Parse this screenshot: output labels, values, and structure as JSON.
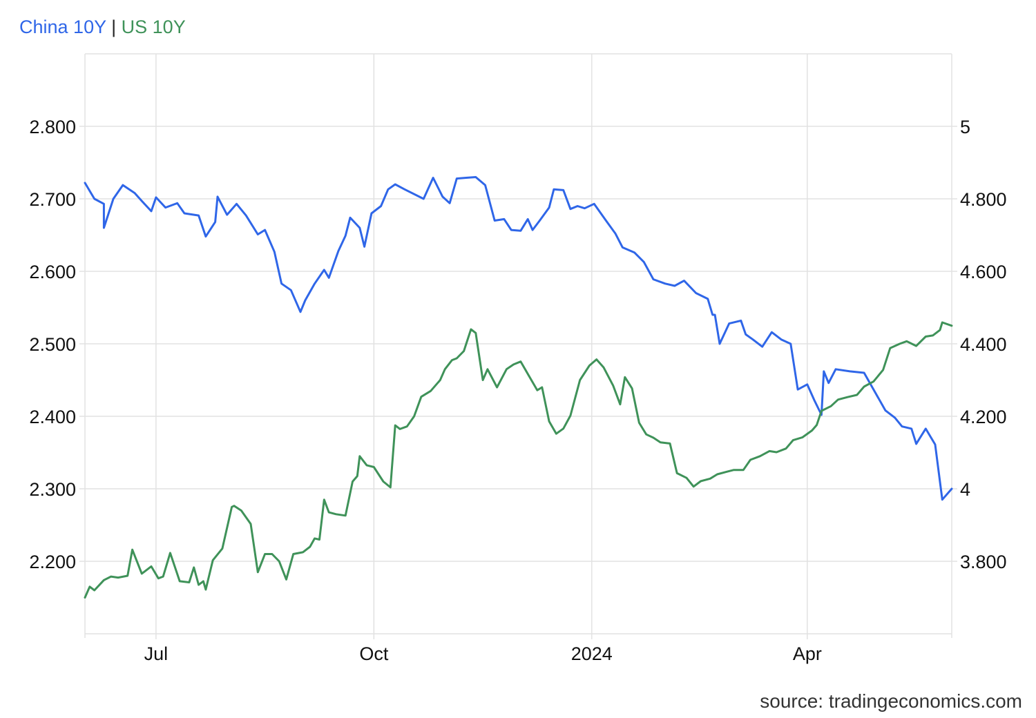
{
  "legend": {
    "series_a": "China 10Y",
    "separator": "|",
    "series_b": "US 10Y"
  },
  "source": "source: tradingeconomics.com",
  "colors": {
    "china": "#2f66e8",
    "us": "#3f9259",
    "grid": "#e2e2e2",
    "axis_text": "#111111"
  },
  "chart_data": {
    "type": "line",
    "x_type": "date",
    "x_range": [
      "2023-06-01",
      "2024-06-01"
    ],
    "x_ticks": [
      {
        "date": "2023-07-01",
        "label": "Jul"
      },
      {
        "date": "2023-10-01",
        "label": "Oct"
      },
      {
        "date": "2024-01-01",
        "label": "2024"
      },
      {
        "date": "2024-04-01",
        "label": "Apr"
      }
    ],
    "y_left": {
      "range": [
        2.1,
        2.9
      ],
      "ticks": [
        2.2,
        2.3,
        2.4,
        2.5,
        2.6,
        2.7,
        2.8
      ],
      "tick_labels": [
        "2.200",
        "2.300",
        "2.400",
        "2.500",
        "2.600",
        "2.700",
        "2.800"
      ]
    },
    "y_right": {
      "range": [
        3.6,
        5.2
      ],
      "ticks": [
        3.8,
        4.0,
        4.2,
        4.4,
        4.6,
        4.8,
        5.0
      ],
      "tick_labels": [
        "3.800",
        "4",
        "4.200",
        "4.400",
        "4.600",
        "4.800",
        "5"
      ]
    },
    "grid": true,
    "series": [
      {
        "name": "China 10Y",
        "axis": "left",
        "color_key": "china",
        "points": [
          [
            "2023-06-01",
            2.722
          ],
          [
            "2023-06-05",
            2.7
          ],
          [
            "2023-06-09",
            2.693
          ],
          [
            "2023-06-09",
            2.66
          ],
          [
            "2023-06-13",
            2.7
          ],
          [
            "2023-06-17",
            2.719
          ],
          [
            "2023-06-22",
            2.708
          ],
          [
            "2023-06-25",
            2.697
          ],
          [
            "2023-06-29",
            2.683
          ],
          [
            "2023-07-01",
            2.702
          ],
          [
            "2023-07-05",
            2.688
          ],
          [
            "2023-07-10",
            2.694
          ],
          [
            "2023-07-13",
            2.68
          ],
          [
            "2023-07-19",
            2.677
          ],
          [
            "2023-07-22",
            2.648
          ],
          [
            "2023-07-26",
            2.668
          ],
          [
            "2023-07-27",
            2.703
          ],
          [
            "2023-07-31",
            2.678
          ],
          [
            "2023-08-04",
            2.693
          ],
          [
            "2023-08-08",
            2.677
          ],
          [
            "2023-08-13",
            2.651
          ],
          [
            "2023-08-16",
            2.657
          ],
          [
            "2023-08-20",
            2.627
          ],
          [
            "2023-08-23",
            2.583
          ],
          [
            "2023-08-27",
            2.574
          ],
          [
            "2023-08-31",
            2.544
          ],
          [
            "2023-09-02",
            2.56
          ],
          [
            "2023-09-06",
            2.583
          ],
          [
            "2023-09-10",
            2.602
          ],
          [
            "2023-09-12",
            2.591
          ],
          [
            "2023-09-16",
            2.628
          ],
          [
            "2023-09-19",
            2.649
          ],
          [
            "2023-09-21",
            2.674
          ],
          [
            "2023-09-25",
            2.66
          ],
          [
            "2023-09-27",
            2.634
          ],
          [
            "2023-09-30",
            2.68
          ],
          [
            "2023-10-04",
            2.69
          ],
          [
            "2023-10-07",
            2.713
          ],
          [
            "2023-10-10",
            2.72
          ],
          [
            "2023-10-14",
            2.713
          ],
          [
            "2023-10-22",
            2.7
          ],
          [
            "2023-10-26",
            2.729
          ],
          [
            "2023-10-30",
            2.703
          ],
          [
            "2023-11-02",
            2.694
          ],
          [
            "2023-11-05",
            2.728
          ],
          [
            "2023-11-09",
            2.729
          ],
          [
            "2023-11-13",
            2.73
          ],
          [
            "2023-11-17",
            2.719
          ],
          [
            "2023-11-21",
            2.67
          ],
          [
            "2023-11-25",
            2.672
          ],
          [
            "2023-11-28",
            2.657
          ],
          [
            "2023-12-02",
            2.656
          ],
          [
            "2023-12-05",
            2.672
          ],
          [
            "2023-12-07",
            2.657
          ],
          [
            "2023-12-10",
            2.67
          ],
          [
            "2023-12-14",
            2.688
          ],
          [
            "2023-12-16",
            2.713
          ],
          [
            "2023-12-20",
            2.712
          ],
          [
            "2023-12-23",
            2.686
          ],
          [
            "2023-12-26",
            2.69
          ],
          [
            "2023-12-29",
            2.687
          ],
          [
            "2024-01-02",
            2.693
          ],
          [
            "2024-01-07",
            2.67
          ],
          [
            "2024-01-11",
            2.652
          ],
          [
            "2024-01-14",
            2.633
          ],
          [
            "2024-01-19",
            2.626
          ],
          [
            "2024-01-23",
            2.613
          ],
          [
            "2024-01-27",
            2.589
          ],
          [
            "2024-02-01",
            2.583
          ],
          [
            "2024-02-05",
            2.58
          ],
          [
            "2024-02-09",
            2.587
          ],
          [
            "2024-02-14",
            2.57
          ],
          [
            "2024-02-19",
            2.562
          ],
          [
            "2024-02-21",
            2.54
          ],
          [
            "2024-02-22",
            2.54
          ],
          [
            "2024-02-24",
            2.5
          ],
          [
            "2024-02-28",
            2.528
          ],
          [
            "2024-03-04",
            2.532
          ],
          [
            "2024-03-06",
            2.513
          ],
          [
            "2024-03-09",
            2.506
          ],
          [
            "2024-03-13",
            2.496
          ],
          [
            "2024-03-17",
            2.516
          ],
          [
            "2024-03-21",
            2.506
          ],
          [
            "2024-03-25",
            2.5
          ],
          [
            "2024-03-28",
            2.437
          ],
          [
            "2024-04-01",
            2.444
          ],
          [
            "2024-04-04",
            2.422
          ],
          [
            "2024-04-07",
            2.402
          ],
          [
            "2024-04-08",
            2.462
          ],
          [
            "2024-04-10",
            2.446
          ],
          [
            "2024-04-13",
            2.465
          ],
          [
            "2024-04-19",
            2.462
          ],
          [
            "2024-04-25",
            2.46
          ],
          [
            "2024-04-29",
            2.437
          ],
          [
            "2024-05-04",
            2.408
          ],
          [
            "2024-05-08",
            2.398
          ],
          [
            "2024-05-11",
            2.386
          ],
          [
            "2024-05-15",
            2.383
          ],
          [
            "2024-05-17",
            2.362
          ],
          [
            "2024-05-21",
            2.383
          ],
          [
            "2024-05-25",
            2.361
          ],
          [
            "2024-05-28",
            2.285
          ],
          [
            "2024-06-01",
            2.3
          ]
        ]
      },
      {
        "name": "US 10Y",
        "axis": "right",
        "color_key": "us",
        "points": [
          [
            "2023-06-01",
            3.7
          ],
          [
            "2023-06-03",
            3.73
          ],
          [
            "2023-06-05",
            3.72
          ],
          [
            "2023-06-09",
            3.748
          ],
          [
            "2023-06-12",
            3.758
          ],
          [
            "2023-06-15",
            3.755
          ],
          [
            "2023-06-19",
            3.76
          ],
          [
            "2023-06-21",
            3.832
          ],
          [
            "2023-06-25",
            3.766
          ],
          [
            "2023-06-29",
            3.786
          ],
          [
            "2023-07-02",
            3.753
          ],
          [
            "2023-07-04",
            3.758
          ],
          [
            "2023-07-07",
            3.823
          ],
          [
            "2023-07-11",
            3.745
          ],
          [
            "2023-07-15",
            3.742
          ],
          [
            "2023-07-17",
            3.783
          ],
          [
            "2023-07-19",
            3.735
          ],
          [
            "2023-07-21",
            3.745
          ],
          [
            "2023-07-22",
            3.722
          ],
          [
            "2023-07-25",
            3.803
          ],
          [
            "2023-07-29",
            3.835
          ],
          [
            "2023-08-02",
            3.95
          ],
          [
            "2023-08-03",
            3.953
          ],
          [
            "2023-08-06",
            3.94
          ],
          [
            "2023-08-10",
            3.903
          ],
          [
            "2023-08-13",
            3.77
          ],
          [
            "2023-08-16",
            3.82
          ],
          [
            "2023-08-19",
            3.82
          ],
          [
            "2023-08-22",
            3.8
          ],
          [
            "2023-08-25",
            3.75
          ],
          [
            "2023-08-28",
            3.82
          ],
          [
            "2023-09-01",
            3.825
          ],
          [
            "2023-09-04",
            3.84
          ],
          [
            "2023-09-06",
            3.863
          ],
          [
            "2023-09-08",
            3.86
          ],
          [
            "2023-09-10",
            3.97
          ],
          [
            "2023-09-12",
            3.935
          ],
          [
            "2023-09-15",
            3.93
          ],
          [
            "2023-09-19",
            3.926
          ],
          [
            "2023-09-22",
            4.02
          ],
          [
            "2023-09-24",
            4.035
          ],
          [
            "2023-09-25",
            4.09
          ],
          [
            "2023-09-28",
            4.065
          ],
          [
            "2023-10-01",
            4.06
          ],
          [
            "2023-10-05",
            4.02
          ],
          [
            "2023-10-08",
            4.004
          ],
          [
            "2023-10-10",
            4.175
          ],
          [
            "2023-10-12",
            4.165
          ],
          [
            "2023-10-15",
            4.172
          ],
          [
            "2023-10-18",
            4.2
          ],
          [
            "2023-10-21",
            4.254
          ],
          [
            "2023-10-25",
            4.27
          ],
          [
            "2023-10-29",
            4.3
          ],
          [
            "2023-10-31",
            4.33
          ],
          [
            "2023-11-03",
            4.355
          ],
          [
            "2023-11-05",
            4.36
          ],
          [
            "2023-11-08",
            4.38
          ],
          [
            "2023-11-11",
            4.44
          ],
          [
            "2023-11-13",
            4.43
          ],
          [
            "2023-11-16",
            4.3
          ],
          [
            "2023-11-18",
            4.33
          ],
          [
            "2023-11-22",
            4.28
          ],
          [
            "2023-11-26",
            4.33
          ],
          [
            "2023-11-29",
            4.343
          ],
          [
            "2023-12-02",
            4.351
          ],
          [
            "2023-12-05",
            4.317
          ],
          [
            "2023-12-09",
            4.272
          ],
          [
            "2023-12-11",
            4.28
          ],
          [
            "2023-12-14",
            4.186
          ],
          [
            "2023-12-17",
            4.152
          ],
          [
            "2023-12-20",
            4.166
          ],
          [
            "2023-12-23",
            4.202
          ],
          [
            "2023-12-27",
            4.3
          ],
          [
            "2023-12-31",
            4.34
          ],
          [
            "2024-01-03",
            4.357
          ],
          [
            "2024-01-06",
            4.335
          ],
          [
            "2024-01-10",
            4.285
          ],
          [
            "2024-01-13",
            4.233
          ],
          [
            "2024-01-15",
            4.308
          ],
          [
            "2024-01-18",
            4.277
          ],
          [
            "2024-01-21",
            4.182
          ],
          [
            "2024-01-24",
            4.15
          ],
          [
            "2024-01-27",
            4.141
          ],
          [
            "2024-01-30",
            4.128
          ],
          [
            "2024-02-03",
            4.125
          ],
          [
            "2024-02-06",
            4.043
          ],
          [
            "2024-02-10",
            4.03
          ],
          [
            "2024-02-13",
            4.006
          ],
          [
            "2024-02-16",
            4.021
          ],
          [
            "2024-02-20",
            4.028
          ],
          [
            "2024-02-23",
            4.04
          ],
          [
            "2024-02-27",
            4.047
          ],
          [
            "2024-03-01",
            4.052
          ],
          [
            "2024-03-05",
            4.052
          ],
          [
            "2024-03-08",
            4.08
          ],
          [
            "2024-03-12",
            4.09
          ],
          [
            "2024-03-16",
            4.104
          ],
          [
            "2024-03-19",
            4.101
          ],
          [
            "2024-03-23",
            4.111
          ],
          [
            "2024-03-26",
            4.134
          ],
          [
            "2024-03-30",
            4.142
          ],
          [
            "2024-04-03",
            4.161
          ],
          [
            "2024-04-05",
            4.176
          ],
          [
            "2024-04-07",
            4.215
          ],
          [
            "2024-04-11",
            4.228
          ],
          [
            "2024-04-14",
            4.246
          ],
          [
            "2024-04-18",
            4.253
          ],
          [
            "2024-04-22",
            4.259
          ],
          [
            "2024-04-25",
            4.282
          ],
          [
            "2024-04-29",
            4.296
          ],
          [
            "2024-05-03",
            4.328
          ],
          [
            "2024-05-06",
            4.388
          ],
          [
            "2024-05-10",
            4.4
          ],
          [
            "2024-05-13",
            4.407
          ],
          [
            "2024-05-17",
            4.394
          ],
          [
            "2024-05-21",
            4.42
          ],
          [
            "2024-05-24",
            4.423
          ],
          [
            "2024-05-27",
            4.438
          ],
          [
            "2024-05-28",
            4.459
          ],
          [
            "2024-06-01",
            4.45
          ]
        ]
      }
    ]
  }
}
